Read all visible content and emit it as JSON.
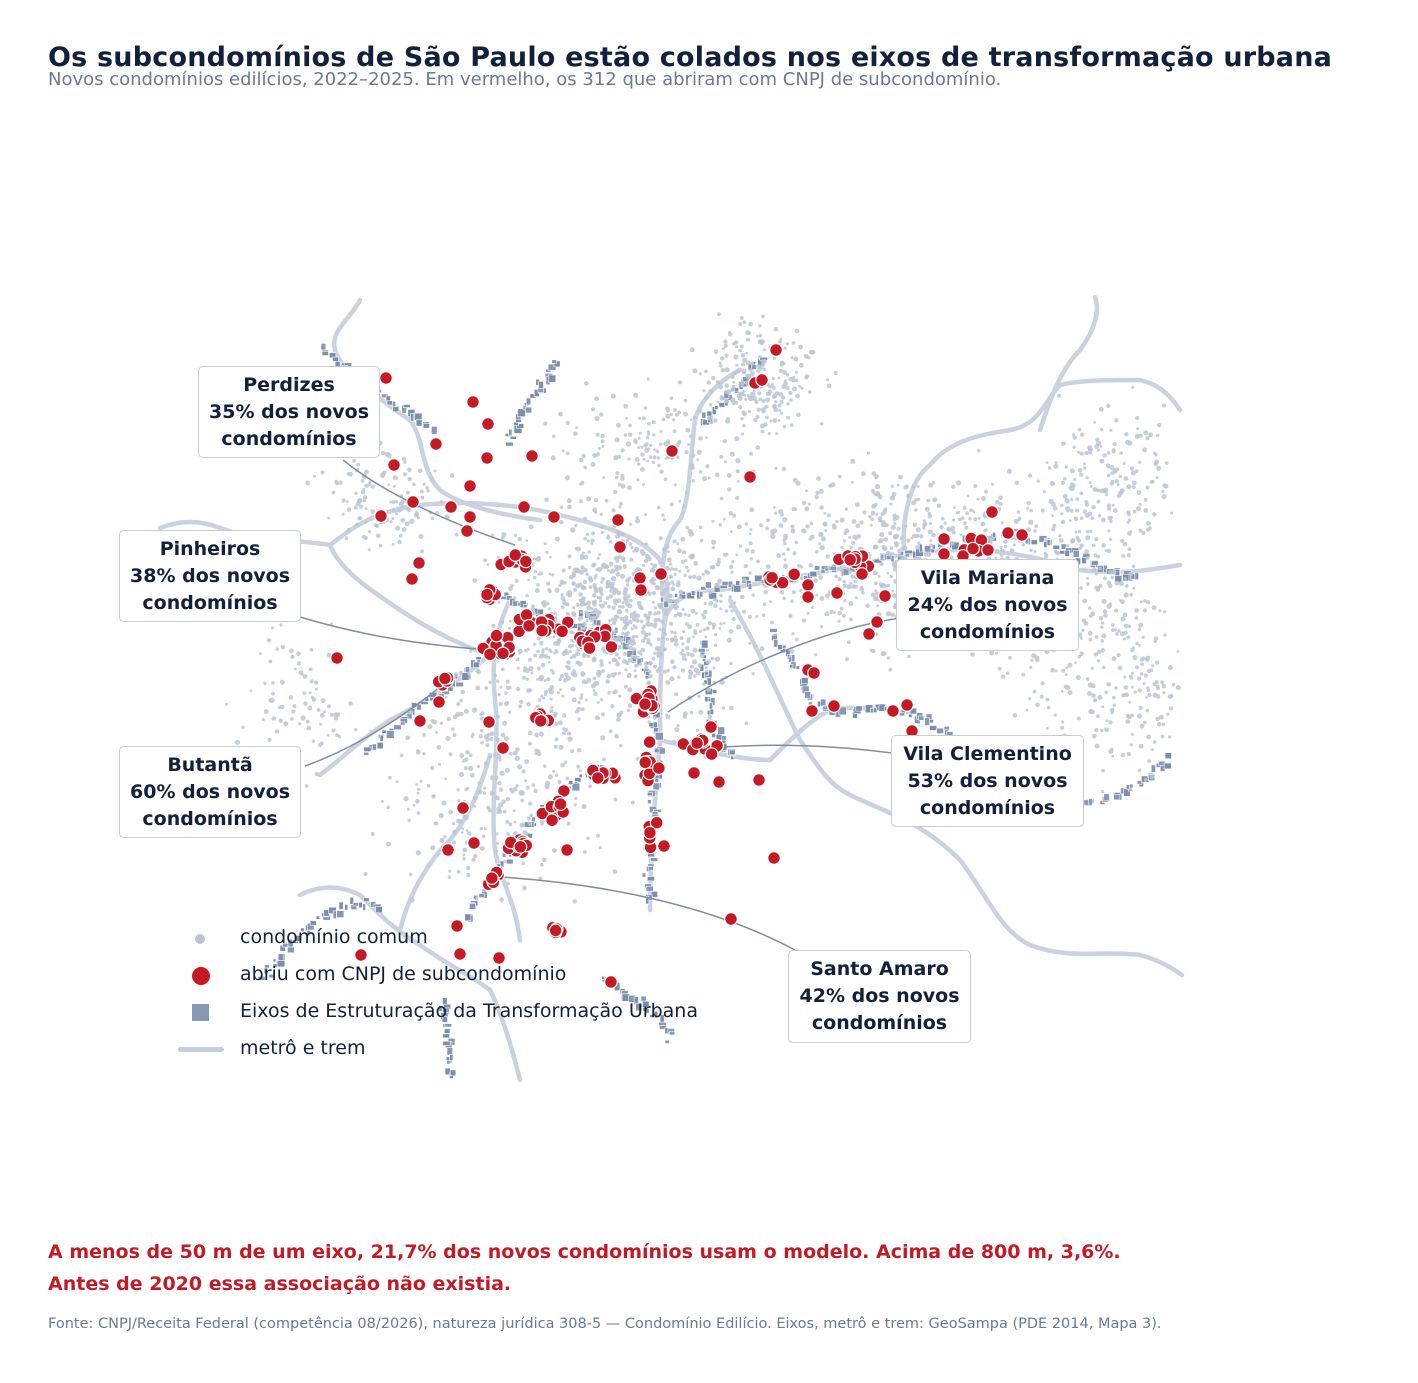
{
  "title": "Os subcondomínios de São Paulo estão colados nos eixos de transformação urbana",
  "subtitle": "Novos condomínios edilícios, 2022–2025. Em vermelho, os 312 que abriram com CNPJ de subcondomínio.",
  "callouts": [
    {
      "id": "perdizes",
      "name": "Perdizes",
      "line2": "35% dos novos",
      "line3": "condomínios"
    },
    {
      "id": "pinheiros",
      "name": "Pinheiros",
      "line2": "38% dos novos",
      "line3": "condomínios"
    },
    {
      "id": "butanta",
      "name": "Butantã",
      "line2": "60% dos novos",
      "line3": "condomínios"
    },
    {
      "id": "vila_mariana",
      "name": "Vila Mariana",
      "line2": "24% dos novos",
      "line3": "condomínios"
    },
    {
      "id": "vila_clementino",
      "name": "Vila Clementino",
      "line2": "53% dos novos",
      "line3": "condomínios"
    },
    {
      "id": "santo_amaro",
      "name": "Santo Amaro",
      "line2": "42% dos novos",
      "line3": "condomínios"
    }
  ],
  "legend": {
    "common": "condomínio comum",
    "sub": "abriu com CNPJ de subcondomínio",
    "eixos": "Eixos de Estruturação da Transformação Urbana",
    "rail": "metrô e trem"
  },
  "highlight": {
    "line1": "A menos de 50 m de um eixo, 21,7% dos novos condomínios usam o modelo. Acima de 800 m, 3,6%.",
    "line2": "Antes de 2020 essa associação não existia."
  },
  "source": "Fonte: CNPJ/Receita Federal (competência 08/2026), natureza jurídica 308-5 — Condomínio Edilício. Eixos, metrô e trem: GeoSampa (PDE 2014, Mapa 3).",
  "colors": {
    "sub": "#c41a26",
    "common": "#b9c3d2",
    "eixo": "#8698b3",
    "rail": "#c5cedb",
    "leader": "#7f8ea3",
    "text": "#13203b",
    "muted": "#6b7a90"
  },
  "counts": {
    "subcondominios": 312
  }
}
